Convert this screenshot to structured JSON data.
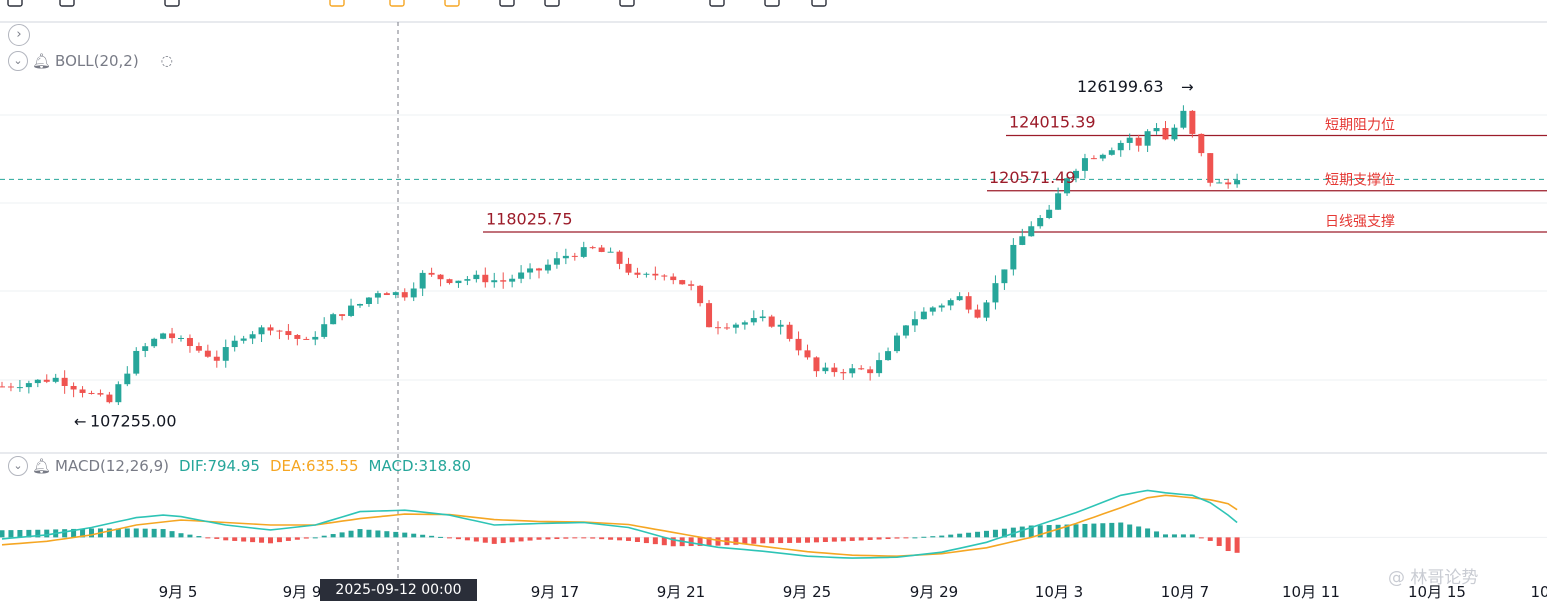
{
  "colors": {
    "up": "#26a69a",
    "down": "#ef5350",
    "level": "#9c1c2a",
    "dif": "#2ec4b6",
    "dea": "#f5a623",
    "grid": "#eef0f3",
    "last_price": "#26a69a"
  },
  "toolbar": {
    "icons": [
      "chevron-left-icon",
      "minus-icon",
      "drawing-icon",
      "text-icon",
      "forecast-icon",
      "undo-icon",
      "redo-icon",
      "star-icon",
      "settings-icon",
      "ruler-icon",
      "compare-icon",
      "measure-icon"
    ]
  },
  "indicators": {
    "boll": {
      "name": "BOLL(20,2)"
    },
    "macd": {
      "name": "MACD(12,26,9)",
      "dif": "DIF:794.95",
      "dea": "DEA:635.55",
      "macd": "MACD:318.80"
    }
  },
  "crosshair": {
    "date_label": "2025-09-12 00:00"
  },
  "watermark": "@ 林哥论势",
  "chart_data": {
    "type": "candlestick",
    "x_ticks": [
      "9月 5",
      "9月 9",
      "9月 17",
      "9月 21",
      "9月 25",
      "9月 29",
      "10月 3",
      "10月 7",
      "10月 11",
      "10月 15",
      "10"
    ],
    "ylim": [
      105000,
      128500
    ],
    "price_labels": [
      {
        "text": "107255.00",
        "value": 107255.0
      },
      {
        "text": "118025.75",
        "value": 118025.75
      },
      {
        "text": "120571.49",
        "value": 120571.49
      },
      {
        "text": "124015.39",
        "value": 124015.39
      },
      {
        "text": "126199.63",
        "value": 126199.63
      }
    ],
    "levels": [
      {
        "label": "短期阻力位",
        "value": 124015
      },
      {
        "label": "短期支撑位",
        "value": 120600
      },
      {
        "label": "日线强支撑",
        "value": 118050
      }
    ],
    "last_price": 121300,
    "close_path": [
      [
        0,
        108500
      ],
      [
        6,
        109000
      ],
      [
        10,
        108000
      ],
      [
        12,
        107500
      ],
      [
        15,
        110500
      ],
      [
        18,
        111800
      ],
      [
        21,
        111000
      ],
      [
        24,
        110200
      ],
      [
        27,
        111700
      ],
      [
        30,
        112200
      ],
      [
        34,
        111200
      ],
      [
        37,
        112800
      ],
      [
        40,
        113600
      ],
      [
        42,
        114400
      ],
      [
        45,
        114200
      ],
      [
        47,
        115400
      ],
      [
        50,
        115100
      ],
      [
        53,
        115200
      ],
      [
        56,
        115000
      ],
      [
        58,
        115400
      ],
      [
        60,
        115700
      ],
      [
        63,
        116600
      ],
      [
        66,
        117000
      ],
      [
        68,
        116600
      ],
      [
        71,
        115200
      ],
      [
        74,
        115500
      ],
      [
        77,
        114600
      ],
      [
        79,
        112300
      ],
      [
        82,
        112400
      ],
      [
        85,
        112600
      ],
      [
        87,
        112200
      ],
      [
        89,
        110900
      ],
      [
        91,
        109400
      ],
      [
        94,
        109500
      ],
      [
        97,
        109500
      ],
      [
        99,
        110500
      ],
      [
        101,
        112400
      ],
      [
        104,
        113400
      ],
      [
        107,
        114000
      ],
      [
        109,
        113000
      ],
      [
        111,
        114800
      ],
      [
        113,
        117000
      ],
      [
        115,
        118500
      ],
      [
        117,
        119200
      ],
      [
        119,
        121500
      ],
      [
        121,
        122600
      ],
      [
        123,
        123000
      ],
      [
        125,
        123600
      ],
      [
        126,
        123900
      ],
      [
        127,
        123300
      ],
      [
        128,
        124300
      ],
      [
        129,
        124600
      ],
      [
        130,
        123800
      ],
      [
        131,
        124500
      ],
      [
        132,
        125400
      ],
      [
        133,
        124000
      ],
      [
        134,
        122800
      ],
      [
        135,
        121200
      ],
      [
        136,
        121000
      ],
      [
        137,
        121000
      ],
      [
        138,
        121500
      ]
    ],
    "macd": {
      "dif": [
        [
          0,
          -30
        ],
        [
          5,
          50
        ],
        [
          10,
          200
        ],
        [
          15,
          400
        ],
        [
          18,
          450
        ],
        [
          20,
          420
        ],
        [
          25,
          250
        ],
        [
          30,
          150
        ],
        [
          35,
          250
        ],
        [
          40,
          520
        ],
        [
          45,
          550
        ],
        [
          50,
          450
        ],
        [
          55,
          250
        ],
        [
          60,
          280
        ],
        [
          65,
          300
        ],
        [
          70,
          200
        ],
        [
          75,
          -50
        ],
        [
          80,
          -200
        ],
        [
          85,
          -280
        ],
        [
          90,
          -380
        ],
        [
          95,
          -420
        ],
        [
          100,
          -400
        ],
        [
          105,
          -300
        ],
        [
          110,
          -100
        ],
        [
          115,
          200
        ],
        [
          120,
          500
        ],
        [
          125,
          850
        ],
        [
          128,
          950
        ],
        [
          130,
          900
        ],
        [
          133,
          850
        ],
        [
          135,
          700
        ],
        [
          137,
          450
        ],
        [
          138,
          300
        ]
      ],
      "dea": [
        [
          0,
          -150
        ],
        [
          5,
          -80
        ],
        [
          10,
          50
        ],
        [
          15,
          250
        ],
        [
          20,
          350
        ],
        [
          25,
          300
        ],
        [
          30,
          250
        ],
        [
          35,
          250
        ],
        [
          40,
          380
        ],
        [
          45,
          470
        ],
        [
          50,
          460
        ],
        [
          55,
          360
        ],
        [
          60,
          320
        ],
        [
          65,
          310
        ],
        [
          70,
          260
        ],
        [
          75,
          100
        ],
        [
          80,
          -60
        ],
        [
          85,
          -180
        ],
        [
          90,
          -290
        ],
        [
          95,
          -360
        ],
        [
          100,
          -380
        ],
        [
          105,
          -330
        ],
        [
          110,
          -210
        ],
        [
          115,
          0
        ],
        [
          120,
          280
        ],
        [
          125,
          600
        ],
        [
          128,
          800
        ],
        [
          130,
          850
        ],
        [
          133,
          800
        ],
        [
          135,
          760
        ],
        [
          137,
          680
        ],
        [
          138,
          560
        ]
      ],
      "ylim": [
        -700,
        1200
      ]
    }
  }
}
